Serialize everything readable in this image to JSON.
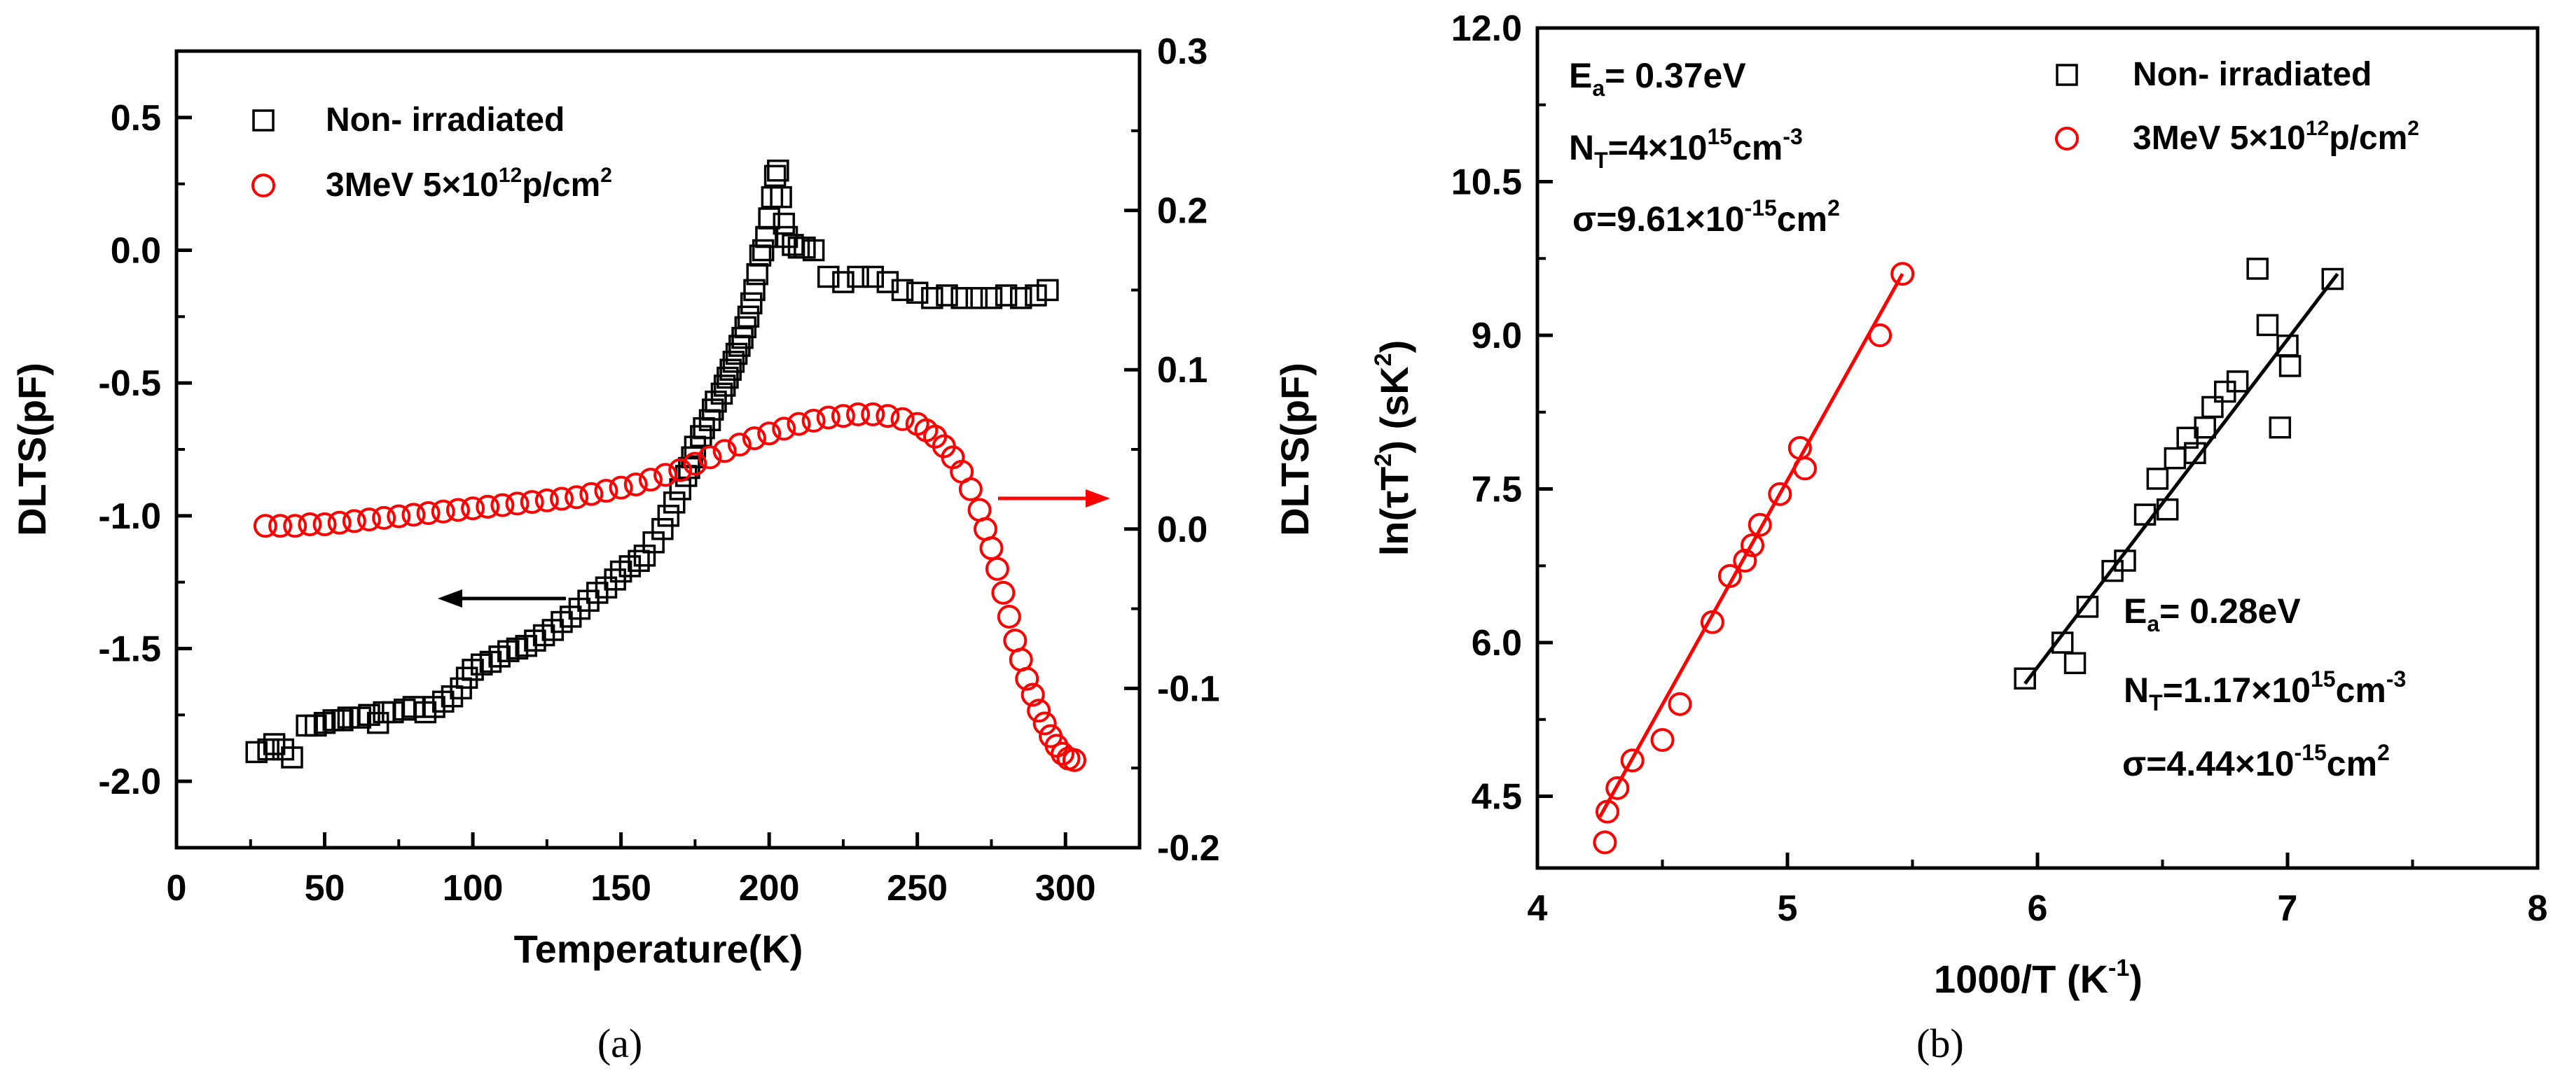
{
  "chart_data": [
    {
      "panel": "a",
      "type": "scatter",
      "xlabel": "Temperature(K)",
      "ylabel": "DLTS(pF)",
      "y2label": "DLTS(pF)",
      "xlim": [
        0,
        325
      ],
      "ylim": [
        -2.25,
        0.75
      ],
      "y2lim": [
        -0.2,
        0.3
      ],
      "xticks": [
        "0",
        "50",
        "100",
        "150",
        "200",
        "250",
        "300"
      ],
      "yticks": [
        "-2.0",
        "-1.5",
        "-1.0",
        "-0.5",
        "0.0",
        "0.5"
      ],
      "y2ticks": [
        "-0.2",
        "-0.1",
        "0.0",
        "0.1",
        "0.2",
        "0.3"
      ],
      "caption": "(a)",
      "legend": [
        {
          "name": "Non- irradiated",
          "marker": "square",
          "color": "#000000"
        },
        {
          "name": "3MeV 5×10",
          "sup": "12",
          "tail": "p/cm",
          "sup2": "2",
          "marker": "circle",
          "color": "#ff0000"
        }
      ],
      "arrows": [
        {
          "series": "Non- irradiated",
          "direction": "left",
          "color": "#000000"
        },
        {
          "series": "3MeV",
          "direction": "right",
          "color": "#ff0000"
        }
      ],
      "series": [
        {
          "name": "Non- irradiated",
          "axis": "left",
          "marker": "square",
          "color": "#000000",
          "x": [
            27,
            31,
            33,
            36,
            39,
            44,
            47,
            50,
            53,
            56,
            58,
            62,
            65,
            68,
            70,
            73,
            77,
            80,
            84,
            87,
            90,
            93,
            96,
            98,
            100,
            103,
            106,
            109,
            112,
            115,
            118,
            121,
            124,
            127,
            130,
            133,
            136,
            139,
            142,
            145,
            148,
            150,
            153,
            156,
            158,
            161,
            164,
            166,
            168,
            170,
            172,
            173,
            174,
            175,
            177,
            178,
            180,
            181,
            182,
            184,
            185,
            186,
            187,
            188,
            189,
            190,
            191,
            192,
            193,
            194,
            195,
            196,
            197,
            198,
            199,
            200,
            201,
            202,
            203,
            204,
            205,
            206,
            208,
            210,
            212,
            215,
            220,
            225,
            230,
            235,
            240,
            245,
            250,
            255,
            260,
            265,
            270,
            275,
            280,
            285,
            290,
            294
          ],
          "y": [
            -1.89,
            -1.88,
            -1.86,
            -1.88,
            -1.91,
            -1.79,
            -1.79,
            -1.78,
            -1.77,
            -1.77,
            -1.76,
            -1.76,
            -1.75,
            -1.78,
            -1.74,
            -1.74,
            -1.73,
            -1.72,
            -1.74,
            -1.72,
            -1.7,
            -1.68,
            -1.65,
            -1.61,
            -1.58,
            -1.56,
            -1.55,
            -1.53,
            -1.51,
            -1.5,
            -1.49,
            -1.47,
            -1.45,
            -1.43,
            -1.4,
            -1.38,
            -1.35,
            -1.32,
            -1.29,
            -1.27,
            -1.24,
            -1.21,
            -1.19,
            -1.17,
            -1.15,
            -1.1,
            -1.05,
            -1.0,
            -0.95,
            -0.9,
            -0.85,
            -0.82,
            -0.78,
            -0.74,
            -0.7,
            -0.67,
            -0.64,
            -0.6,
            -0.57,
            -0.54,
            -0.51,
            -0.48,
            -0.45,
            -0.42,
            -0.39,
            -0.36,
            -0.33,
            -0.29,
            -0.25,
            -0.2,
            -0.15,
            -0.09,
            -0.02,
            0.0,
            0.05,
            0.12,
            0.2,
            0.28,
            0.3,
            0.2,
            0.1,
            0.05,
            0.02,
            0.01,
            0.01,
            0.0,
            -0.1,
            -0.12,
            -0.1,
            -0.1,
            -0.12,
            -0.15,
            -0.16,
            -0.18,
            -0.17,
            -0.18,
            -0.18,
            -0.18,
            -0.17,
            -0.18,
            -0.17,
            -0.15
          ]
        },
        {
          "name": "3MeV 5×10^12 p/cm^2",
          "axis": "right",
          "marker": "circle",
          "color": "#ff0000",
          "x": [
            30,
            35,
            40,
            45,
            50,
            55,
            60,
            65,
            70,
            75,
            80,
            85,
            90,
            95,
            100,
            105,
            110,
            115,
            120,
            125,
            130,
            135,
            140,
            145,
            150,
            155,
            160,
            165,
            170,
            175,
            180,
            185,
            190,
            195,
            200,
            205,
            210,
            215,
            220,
            225,
            230,
            235,
            240,
            245,
            250,
            253,
            256,
            259,
            262,
            265,
            268,
            271,
            273,
            275,
            277,
            279,
            281,
            283,
            285,
            287,
            289,
            291,
            293,
            295,
            297,
            299,
            301,
            303
          ],
          "y": [
            0.002,
            0.002,
            0.002,
            0.003,
            0.003,
            0.004,
            0.005,
            0.006,
            0.007,
            0.008,
            0.009,
            0.01,
            0.011,
            0.012,
            0.013,
            0.014,
            0.015,
            0.016,
            0.017,
            0.018,
            0.019,
            0.02,
            0.022,
            0.024,
            0.026,
            0.028,
            0.031,
            0.034,
            0.037,
            0.041,
            0.045,
            0.049,
            0.053,
            0.057,
            0.06,
            0.063,
            0.066,
            0.068,
            0.07,
            0.071,
            0.072,
            0.072,
            0.071,
            0.069,
            0.066,
            0.062,
            0.058,
            0.052,
            0.045,
            0.036,
            0.025,
            0.012,
            0.0,
            -0.012,
            -0.025,
            -0.04,
            -0.055,
            -0.07,
            -0.082,
            -0.094,
            -0.104,
            -0.114,
            -0.122,
            -0.13,
            -0.136,
            -0.141,
            -0.144,
            -0.145
          ]
        }
      ]
    },
    {
      "panel": "b",
      "type": "scatter",
      "xlabel": "1000/T (K",
      "xlabel_sup": "-1",
      "xlabel_tail": ")",
      "ylabel": "ln(τT",
      "ylabel_sup": "2",
      "ylabel_tail": ") (sK",
      "ylabel_sup2": "2",
      "ylabel_tail2": ")",
      "xlim": [
        4,
        8
      ],
      "ylim": [
        3.8,
        12.0
      ],
      "xticks": [
        "4",
        "5",
        "6",
        "7",
        "8"
      ],
      "yticks": [
        "4.5",
        "6.0",
        "7.5",
        "9.0",
        "10.5",
        "12.0"
      ],
      "caption": "(b)",
      "legend": [
        {
          "name": "Non- irradiated",
          "marker": "square",
          "color": "#000000"
        },
        {
          "name": "3MeV 5×10",
          "sup": "12",
          "tail": "p/cm",
          "sup2": "2",
          "marker": "circle",
          "color": "#ff0000"
        }
      ],
      "annotations": {
        "red": {
          "ea": "E",
          "ea_sub": "a",
          "ea_val": "= 0.37eV",
          "nt": "N",
          "nt_sub": "T",
          "nt_val": "=4×10",
          "nt_sup": "15",
          "nt_unit": "cm",
          "nt_unit_sup": "-3",
          "sigma": "σ=9.61×10",
          "sigma_sup": "-15",
          "sigma_unit": "cm",
          "sigma_unit_sup": "2"
        },
        "black": {
          "ea": "E",
          "ea_sub": "a",
          "ea_val": "= 0.28eV",
          "nt": "N",
          "nt_sub": "T",
          "nt_val": "=1.17×10",
          "nt_sup": "15",
          "nt_unit": "cm",
          "nt_unit_sup": "-3",
          "sigma": "σ=4.44×10",
          "sigma_sup": "-15",
          "sigma_unit": "cm",
          "sigma_unit_sup": "2"
        }
      },
      "series": [
        {
          "name": "3MeV 5×10^12 p/cm^2",
          "marker": "circle",
          "color": "#ff0000",
          "x": [
            4.27,
            4.28,
            4.32,
            4.38,
            4.5,
            4.57,
            4.7,
            4.77,
            4.83,
            4.86,
            4.89,
            4.97,
            5.05,
            5.07,
            5.37,
            5.46
          ],
          "y": [
            4.05,
            4.35,
            4.58,
            4.85,
            5.05,
            5.4,
            6.2,
            6.65,
            6.8,
            6.95,
            7.15,
            7.45,
            7.9,
            7.7,
            9.0,
            9.6
          ],
          "fit": {
            "x": [
              4.25,
              5.46
            ],
            "y": [
              4.3,
              9.6
            ]
          }
        },
        {
          "name": "Non- irradiated",
          "marker": "square",
          "color": "#000000",
          "x": [
            5.95,
            6.1,
            6.15,
            6.2,
            6.3,
            6.35,
            6.43,
            6.48,
            6.52,
            6.55,
            6.6,
            6.63,
            6.67,
            6.7,
            6.75,
            6.8,
            6.88,
            6.92,
            6.97,
            7.0,
            7.01,
            7.18
          ],
          "y": [
            5.65,
            6.0,
            5.8,
            6.35,
            6.7,
            6.8,
            7.25,
            7.6,
            7.3,
            7.8,
            8.0,
            7.85,
            8.1,
            8.3,
            8.45,
            8.55,
            9.65,
            9.1,
            8.1,
            8.9,
            8.7,
            9.55
          ],
          "fit": {
            "x": [
              5.95,
              7.2
            ],
            "y": [
              5.6,
              9.6
            ]
          }
        }
      ]
    }
  ]
}
